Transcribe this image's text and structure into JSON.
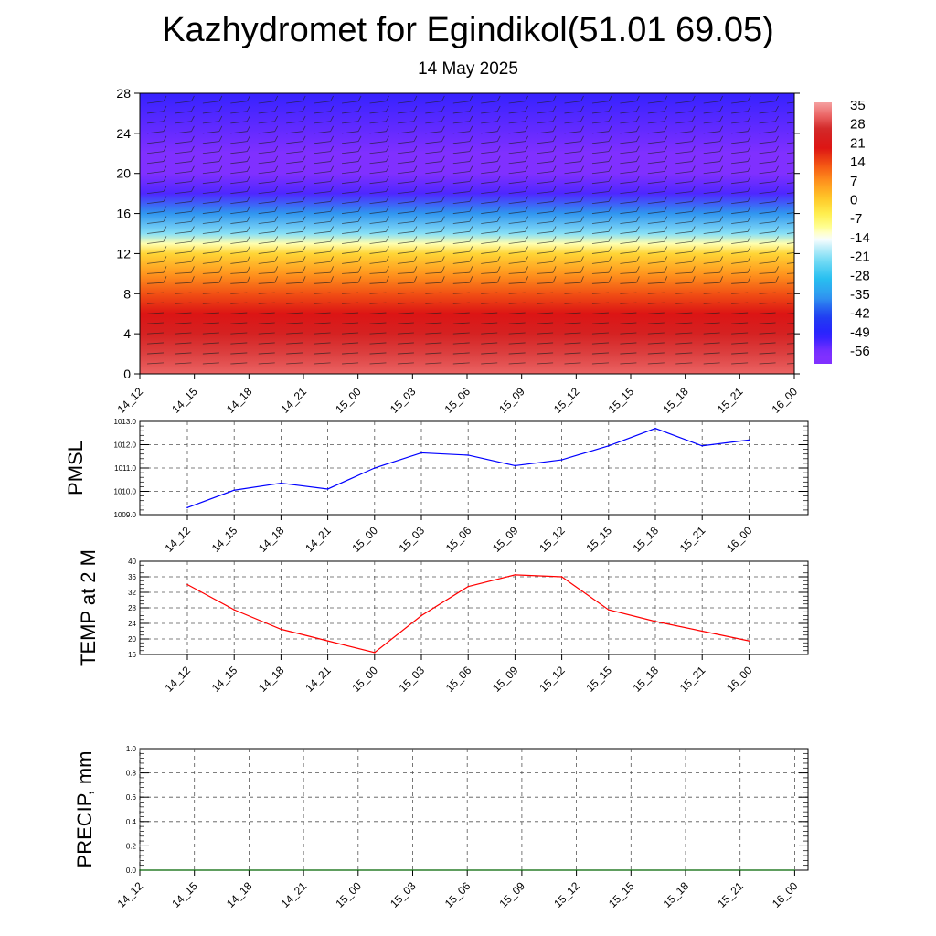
{
  "header": {
    "title": "Kazhydromet for Egindikol(51.01 69.05)",
    "date": "14 May 2025"
  },
  "chart_data": [
    {
      "type": "heatmap",
      "title": "",
      "xlabel": "",
      "ylabel": "",
      "categories": [
        "14_12",
        "14_15",
        "14_18",
        "14_21",
        "15_00",
        "15_03",
        "15_06",
        "15_09",
        "15_12",
        "15_15",
        "15_18",
        "15_21",
        "16_00"
      ],
      "y_ticks": [
        0,
        4,
        8,
        12,
        16,
        20,
        24,
        28
      ],
      "ylim": [
        0,
        28
      ],
      "colorbar_labels": [
        "35",
        "28",
        "21",
        "14",
        "7",
        "0",
        "-7",
        "-14",
        "-21",
        "-28",
        "-35",
        "-42",
        "-49",
        "-56"
      ],
      "colorbar_range": [
        -60,
        38
      ],
      "profile": [
        {
          "level": 0,
          "value": 33
        },
        {
          "level": 2,
          "value": 30
        },
        {
          "level": 4,
          "value": 26
        },
        {
          "level": 6,
          "value": 21
        },
        {
          "level": 8,
          "value": 15
        },
        {
          "level": 10,
          "value": 8
        },
        {
          "level": 12,
          "value": 0
        },
        {
          "level": 13,
          "value": -10
        },
        {
          "level": 14,
          "value": -20
        },
        {
          "level": 16,
          "value": -35
        },
        {
          "level": 18,
          "value": -52
        },
        {
          "level": 20,
          "value": -58
        },
        {
          "level": 22,
          "value": -57
        },
        {
          "level": 24,
          "value": -54
        },
        {
          "level": 26,
          "value": -52
        },
        {
          "level": 28,
          "value": -50
        }
      ],
      "grid": false,
      "overlay": "wind barbs",
      "colors": {
        "hot": "#f08080",
        "warm": "#d62020",
        "orange": "#ff8c00",
        "yellow": "#ffff60",
        "white": "#ffffff",
        "cyan": "#28c0f0",
        "blue": "#2020ff",
        "violet": "#8030ff"
      }
    },
    {
      "type": "line",
      "title": "",
      "xlabel": "",
      "ylabel": "PMSL",
      "categories": [
        "14_12",
        "14_15",
        "14_18",
        "14_21",
        "15_00",
        "15_03",
        "15_06",
        "15_09",
        "15_12",
        "15_15",
        "15_18",
        "15_21",
        "16_00"
      ],
      "series": [
        {
          "values": [
            1009.3,
            1010.05,
            1010.35,
            1010.1,
            1011.0,
            1011.65,
            1011.55,
            1011.1,
            1011.35,
            1011.95,
            1012.7,
            1011.95,
            1012.2
          ]
        }
      ],
      "ylim": [
        1009.0,
        1013.0
      ],
      "y_ticks": [
        "1009.0",
        "1010.0",
        "1011.0",
        "1012.0",
        "1013.0"
      ],
      "grid": true,
      "color": "#0000ff"
    },
    {
      "type": "line",
      "title": "",
      "xlabel": "",
      "ylabel": "TEMP at 2 M",
      "categories": [
        "14_12",
        "14_15",
        "14_18",
        "14_21",
        "15_00",
        "15_03",
        "15_06",
        "15_09",
        "15_12",
        "15_15",
        "15_18",
        "15_21",
        "16_00"
      ],
      "series": [
        {
          "values": [
            34,
            27.5,
            22.5,
            19.5,
            16.5,
            26,
            33.5,
            36.5,
            36,
            27.5,
            24.5,
            22,
            19.5
          ]
        }
      ],
      "ylim": [
        16,
        40
      ],
      "y_ticks": [
        "16",
        "20",
        "24",
        "28",
        "32",
        "36",
        "40"
      ],
      "grid": true,
      "color": "#ff0000"
    },
    {
      "type": "line",
      "title": "",
      "xlabel": "",
      "ylabel": "PRECIP, mm",
      "categories": [
        "14_12",
        "14_15",
        "14_18",
        "14_21",
        "15_00",
        "15_03",
        "15_06",
        "15_09",
        "15_12",
        "15_15",
        "15_18",
        "15_21",
        "16_00"
      ],
      "series": [
        {
          "values": [
            0,
            0,
            0,
            0,
            0,
            0,
            0,
            0,
            0,
            0,
            0,
            0,
            0
          ]
        }
      ],
      "ylim": [
        0,
        1.0
      ],
      "y_ticks": [
        "0.0",
        "0.2",
        "0.4",
        "0.6",
        "0.8",
        "1.0"
      ],
      "grid": true,
      "color": "#006400"
    }
  ]
}
